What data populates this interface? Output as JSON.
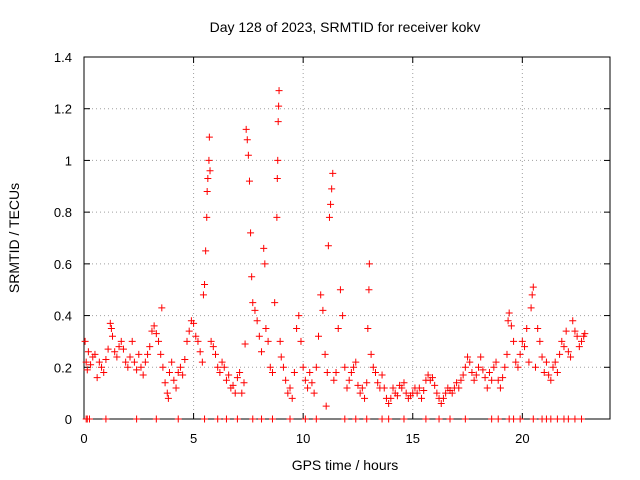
{
  "chart_data": {
    "type": "scatter",
    "title": "Day 128 of 2023, SRMTID for receiver kokv",
    "xlabel": "GPS time / hours",
    "ylabel": "SRMTID / TECUs",
    "xlim": [
      0,
      24
    ],
    "ylim": [
      0,
      1.4
    ],
    "xticks": [
      0,
      5,
      10,
      15,
      20
    ],
    "xtick_labels": [
      "0",
      "5",
      "10",
      "15",
      "20"
    ],
    "yticks": [
      0,
      0.2,
      0.4,
      0.6,
      0.8,
      1.0,
      1.2,
      1.4
    ],
    "ytick_labels": [
      "0",
      "0.2",
      "0.4",
      "0.6",
      "0.8",
      "1",
      "1.2",
      "1.4"
    ],
    "grid": true,
    "marker": "+",
    "marker_color": "#ff0000",
    "series": [
      {
        "name": "SRMTID",
        "points": [
          [
            0.05,
            0.3
          ],
          [
            0.1,
            0.22
          ],
          [
            0.15,
            0.19
          ],
          [
            0.2,
            0.26
          ],
          [
            0.3,
            0.21
          ],
          [
            0.4,
            0.24
          ],
          [
            0.5,
            0.25
          ],
          [
            0.6,
            0.16
          ],
          [
            0.7,
            0.22
          ],
          [
            0.8,
            0.2
          ],
          [
            0.9,
            0.18
          ],
          [
            1.0,
            0.23
          ],
          [
            1.1,
            0.27
          ],
          [
            1.2,
            0.37
          ],
          [
            1.25,
            0.35
          ],
          [
            1.3,
            0.32
          ],
          [
            1.4,
            0.26
          ],
          [
            1.5,
            0.24
          ],
          [
            1.6,
            0.28
          ],
          [
            1.7,
            0.3
          ],
          [
            1.8,
            0.27
          ],
          [
            1.9,
            0.22
          ],
          [
            2.0,
            0.2
          ],
          [
            2.1,
            0.24
          ],
          [
            2.2,
            0.3
          ],
          [
            2.3,
            0.22
          ],
          [
            2.4,
            0.19
          ],
          [
            2.5,
            0.25
          ],
          [
            2.6,
            0.2
          ],
          [
            2.7,
            0.17
          ],
          [
            2.8,
            0.22
          ],
          [
            2.9,
            0.25
          ],
          [
            3.0,
            0.28
          ],
          [
            3.1,
            0.34
          ],
          [
            3.2,
            0.36
          ],
          [
            3.3,
            0.33
          ],
          [
            3.4,
            0.3
          ],
          [
            3.5,
            0.25
          ],
          [
            3.55,
            0.43
          ],
          [
            3.6,
            0.2
          ],
          [
            3.7,
            0.14
          ],
          [
            3.8,
            0.1
          ],
          [
            3.85,
            0.08
          ],
          [
            3.9,
            0.18
          ],
          [
            4.0,
            0.22
          ],
          [
            4.1,
            0.15
          ],
          [
            4.2,
            0.12
          ],
          [
            4.3,
            0.18
          ],
          [
            4.4,
            0.2
          ],
          [
            4.5,
            0.17
          ],
          [
            4.6,
            0.23
          ],
          [
            4.7,
            0.3
          ],
          [
            4.8,
            0.34
          ],
          [
            4.9,
            0.38
          ],
          [
            5.0,
            0.37
          ],
          [
            5.1,
            0.32
          ],
          [
            5.2,
            0.3
          ],
          [
            5.3,
            0.26
          ],
          [
            5.4,
            0.22
          ],
          [
            5.45,
            0.48
          ],
          [
            5.5,
            0.52
          ],
          [
            5.55,
            0.65
          ],
          [
            5.6,
            0.78
          ],
          [
            5.62,
            0.88
          ],
          [
            5.65,
            0.93
          ],
          [
            5.7,
            1.0
          ],
          [
            5.72,
            1.09
          ],
          [
            5.75,
            0.96
          ],
          [
            5.8,
            0.3
          ],
          [
            5.9,
            0.28
          ],
          [
            6.0,
            0.25
          ],
          [
            6.1,
            0.2
          ],
          [
            6.2,
            0.18
          ],
          [
            6.3,
            0.22
          ],
          [
            6.4,
            0.2
          ],
          [
            6.5,
            0.15
          ],
          [
            6.6,
            0.17
          ],
          [
            6.7,
            0.12
          ],
          [
            6.8,
            0.13
          ],
          [
            6.9,
            0.1
          ],
          [
            7.0,
            0.16
          ],
          [
            7.1,
            0.18
          ],
          [
            7.2,
            0.1
          ],
          [
            7.3,
            0.14
          ],
          [
            7.35,
            0.29
          ],
          [
            7.4,
            1.12
          ],
          [
            7.45,
            1.08
          ],
          [
            7.5,
            1.02
          ],
          [
            7.55,
            0.92
          ],
          [
            7.6,
            0.72
          ],
          [
            7.65,
            0.55
          ],
          [
            7.7,
            0.45
          ],
          [
            7.8,
            0.42
          ],
          [
            7.9,
            0.38
          ],
          [
            8.0,
            0.32
          ],
          [
            8.1,
            0.26
          ],
          [
            8.2,
            0.66
          ],
          [
            8.25,
            0.6
          ],
          [
            8.3,
            0.35
          ],
          [
            8.4,
            0.3
          ],
          [
            8.5,
            0.2
          ],
          [
            8.6,
            0.18
          ],
          [
            8.7,
            0.45
          ],
          [
            8.8,
            0.78
          ],
          [
            8.82,
            0.93
          ],
          [
            8.84,
            1.0
          ],
          [
            8.86,
            1.15
          ],
          [
            8.88,
            1.21
          ],
          [
            8.9,
            1.27
          ],
          [
            8.95,
            0.3
          ],
          [
            9.0,
            0.24
          ],
          [
            9.1,
            0.2
          ],
          [
            9.2,
            0.15
          ],
          [
            9.3,
            0.1
          ],
          [
            9.4,
            0.12
          ],
          [
            9.5,
            0.08
          ],
          [
            9.6,
            0.18
          ],
          [
            9.7,
            0.35
          ],
          [
            9.8,
            0.4
          ],
          [
            9.9,
            0.3
          ],
          [
            10.0,
            0.2
          ],
          [
            10.1,
            0.15
          ],
          [
            10.2,
            0.12
          ],
          [
            10.3,
            0.18
          ],
          [
            10.4,
            0.14
          ],
          [
            10.5,
            0.1
          ],
          [
            10.6,
            0.2
          ],
          [
            10.7,
            0.32
          ],
          [
            10.8,
            0.48
          ],
          [
            10.9,
            0.42
          ],
          [
            11.0,
            0.25
          ],
          [
            11.05,
            0.05
          ],
          [
            11.1,
            0.18
          ],
          [
            11.15,
            0.67
          ],
          [
            11.2,
            0.78
          ],
          [
            11.25,
            0.83
          ],
          [
            11.3,
            0.89
          ],
          [
            11.35,
            0.95
          ],
          [
            11.4,
            0.15
          ],
          [
            11.5,
            0.18
          ],
          [
            11.6,
            0.35
          ],
          [
            11.7,
            0.5
          ],
          [
            11.8,
            0.4
          ],
          [
            11.9,
            0.2
          ],
          [
            12.0,
            0.12
          ],
          [
            12.1,
            0.15
          ],
          [
            12.2,
            0.18
          ],
          [
            12.3,
            0.2
          ],
          [
            12.4,
            0.22
          ],
          [
            12.5,
            0.13
          ],
          [
            12.6,
            0.1
          ],
          [
            12.7,
            0.12
          ],
          [
            12.8,
            0.08
          ],
          [
            12.9,
            0.14
          ],
          [
            12.95,
            0.35
          ],
          [
            13.0,
            0.5
          ],
          [
            13.02,
            0.6
          ],
          [
            13.1,
            0.25
          ],
          [
            13.2,
            0.2
          ],
          [
            13.3,
            0.18
          ],
          [
            13.4,
            0.14
          ],
          [
            13.5,
            0.12
          ],
          [
            13.6,
            0.17
          ],
          [
            13.7,
            0.12
          ],
          [
            13.8,
            0.08
          ],
          [
            13.9,
            0.06
          ],
          [
            14.0,
            0.08
          ],
          [
            14.1,
            0.12
          ],
          [
            14.2,
            0.1
          ],
          [
            14.3,
            0.09
          ],
          [
            14.4,
            0.13
          ],
          [
            14.5,
            0.12
          ],
          [
            14.6,
            0.14
          ],
          [
            14.7,
            0.1
          ],
          [
            14.8,
            0.08
          ],
          [
            14.9,
            0.09
          ],
          [
            15.0,
            0.1
          ],
          [
            15.1,
            0.12
          ],
          [
            15.2,
            0.1
          ],
          [
            15.3,
            0.12
          ],
          [
            15.4,
            0.08
          ],
          [
            15.5,
            0.11
          ],
          [
            15.6,
            0.15
          ],
          [
            15.7,
            0.17
          ],
          [
            15.8,
            0.15
          ],
          [
            15.9,
            0.16
          ],
          [
            16.0,
            0.13
          ],
          [
            16.1,
            0.1
          ],
          [
            16.2,
            0.08
          ],
          [
            16.3,
            0.06
          ],
          [
            16.4,
            0.08
          ],
          [
            16.5,
            0.1
          ],
          [
            16.6,
            0.12
          ],
          [
            16.7,
            0.11
          ],
          [
            16.8,
            0.1
          ],
          [
            16.9,
            0.12
          ],
          [
            17.0,
            0.14
          ],
          [
            17.1,
            0.12
          ],
          [
            17.2,
            0.15
          ],
          [
            17.3,
            0.17
          ],
          [
            17.4,
            0.2
          ],
          [
            17.5,
            0.24
          ],
          [
            17.6,
            0.22
          ],
          [
            17.7,
            0.18
          ],
          [
            17.8,
            0.15
          ],
          [
            17.9,
            0.17
          ],
          [
            18.0,
            0.2
          ],
          [
            18.1,
            0.24
          ],
          [
            18.2,
            0.19
          ],
          [
            18.3,
            0.16
          ],
          [
            18.4,
            0.12
          ],
          [
            18.5,
            0.18
          ],
          [
            18.6,
            0.15
          ],
          [
            18.7,
            0.2
          ],
          [
            18.8,
            0.22
          ],
          [
            18.9,
            0.15
          ],
          [
            19.0,
            0.12
          ],
          [
            19.1,
            0.16
          ],
          [
            19.2,
            0.2
          ],
          [
            19.3,
            0.25
          ],
          [
            19.35,
            0.38
          ],
          [
            19.4,
            0.41
          ],
          [
            19.5,
            0.36
          ],
          [
            19.6,
            0.3
          ],
          [
            19.7,
            0.22
          ],
          [
            19.8,
            0.2
          ],
          [
            19.9,
            0.25
          ],
          [
            20.0,
            0.3
          ],
          [
            20.1,
            0.28
          ],
          [
            20.2,
            0.35
          ],
          [
            20.3,
            0.22
          ],
          [
            20.4,
            0.43
          ],
          [
            20.45,
            0.48
          ],
          [
            20.5,
            0.51
          ],
          [
            20.6,
            0.2
          ],
          [
            20.7,
            0.35
          ],
          [
            20.8,
            0.3
          ],
          [
            20.9,
            0.24
          ],
          [
            21.0,
            0.18
          ],
          [
            21.1,
            0.22
          ],
          [
            21.2,
            0.17
          ],
          [
            21.3,
            0.15
          ],
          [
            21.4,
            0.2
          ],
          [
            21.5,
            0.22
          ],
          [
            21.6,
            0.18
          ],
          [
            21.7,
            0.25
          ],
          [
            21.8,
            0.3
          ],
          [
            21.9,
            0.28
          ],
          [
            22.0,
            0.34
          ],
          [
            22.1,
            0.26
          ],
          [
            22.2,
            0.24
          ],
          [
            22.3,
            0.38
          ],
          [
            22.4,
            0.34
          ],
          [
            22.5,
            0.32
          ],
          [
            22.6,
            0.28
          ],
          [
            22.7,
            0.3
          ],
          [
            22.8,
            0.32
          ],
          [
            22.85,
            0.33
          ],
          [
            0.1,
            0.0
          ],
          [
            0.15,
            0.0
          ],
          [
            0.25,
            0.0
          ],
          [
            1.0,
            0.0
          ],
          [
            2.4,
            0.0
          ],
          [
            3.3,
            0.0
          ],
          [
            4.3,
            0.0
          ],
          [
            5.5,
            0.0
          ],
          [
            6.1,
            0.0
          ],
          [
            6.5,
            0.0
          ],
          [
            7.0,
            0.0
          ],
          [
            7.7,
            0.0
          ],
          [
            8.1,
            0.0
          ],
          [
            8.6,
            0.0
          ],
          [
            9.4,
            0.0
          ],
          [
            10.1,
            0.0
          ],
          [
            10.6,
            0.0
          ],
          [
            11.9,
            0.0
          ],
          [
            12.4,
            0.0
          ],
          [
            12.9,
            0.0
          ],
          [
            13.6,
            0.0
          ],
          [
            13.9,
            0.0
          ],
          [
            14.6,
            0.0
          ],
          [
            15.6,
            0.0
          ],
          [
            16.2,
            0.0
          ],
          [
            16.7,
            0.0
          ],
          [
            17.4,
            0.0
          ],
          [
            18.6,
            0.0
          ],
          [
            18.9,
            0.0
          ],
          [
            19.4,
            0.0
          ],
          [
            19.6,
            0.0
          ],
          [
            19.9,
            0.0
          ],
          [
            20.5,
            0.0
          ],
          [
            20.9,
            0.0
          ],
          [
            21.1,
            0.0
          ],
          [
            21.3,
            0.0
          ],
          [
            21.6,
            0.0
          ],
          [
            21.9,
            0.0
          ],
          [
            22.1,
            0.0
          ],
          [
            22.4,
            0.0
          ],
          [
            22.7,
            0.0
          ]
        ]
      }
    ]
  }
}
